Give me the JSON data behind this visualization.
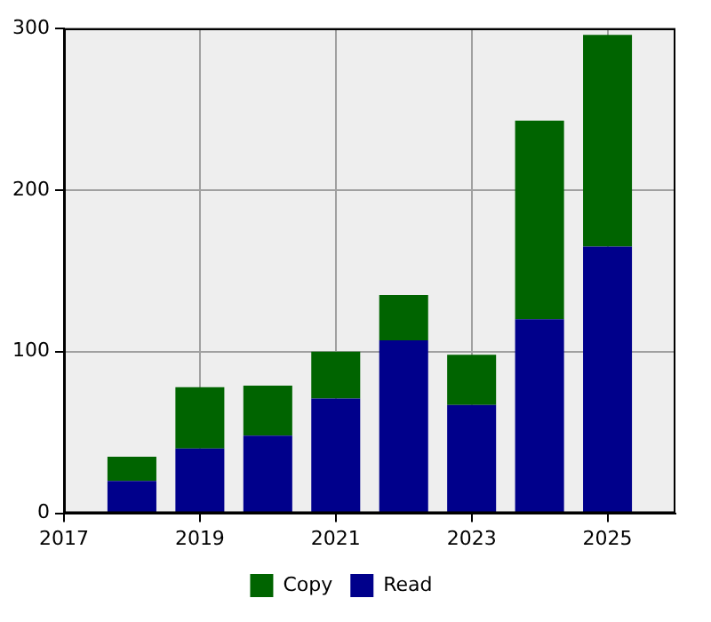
{
  "chart_data": {
    "type": "bar",
    "stacked": true,
    "x": [
      2018,
      2019,
      2020,
      2021,
      2022,
      2023,
      2024,
      2025
    ],
    "series": [
      {
        "name": "Read",
        "color": "#00008b",
        "values": [
          20,
          40,
          48,
          71,
          107,
          67,
          120,
          165
        ]
      },
      {
        "name": "Copy",
        "color": "#006400",
        "values": [
          15,
          38,
          31,
          29,
          28,
          31,
          123,
          131
        ]
      }
    ],
    "xlim": [
      2017,
      2026
    ],
    "xticks": [
      2017,
      2019,
      2021,
      2023,
      2025
    ],
    "ylim": [
      0,
      300
    ],
    "yticks": [
      0,
      100,
      200,
      300
    ],
    "grid": true,
    "legend": "bottom"
  }
}
